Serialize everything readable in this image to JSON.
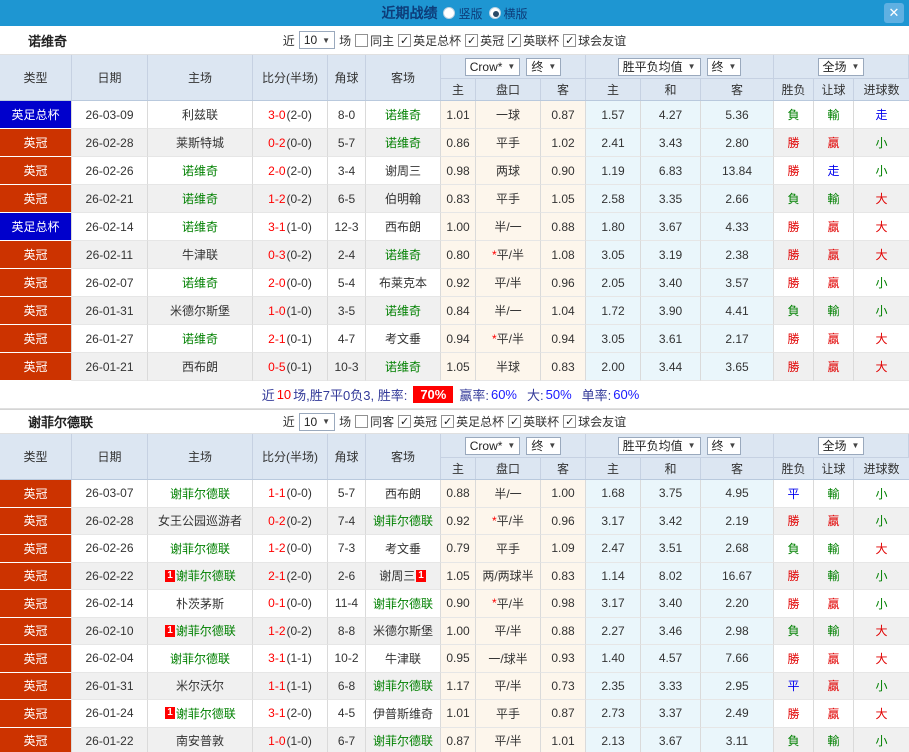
{
  "titlebar": {
    "title": "近期战绩",
    "close_glyph": "✕",
    "radios": [
      {
        "label": "竖版",
        "selected": false
      },
      {
        "label": "横版",
        "selected": true
      }
    ]
  },
  "columns": {
    "main": [
      "类型",
      "日期",
      "主场",
      "比分(半场)",
      "角球",
      "客场"
    ],
    "odds_select": "Crow*",
    "odds_final_select": "终",
    "odds_sub": [
      "主",
      "盘口",
      "客"
    ],
    "mean_select": "胜平负均值",
    "mean_final_select": "终",
    "mean_sub": [
      "主",
      "和",
      "客"
    ],
    "scope_select": "全场",
    "result_sub": [
      "胜负",
      "让球",
      "进球数"
    ],
    "arrow": "▼",
    "check_glyph": "✓"
  },
  "colors": {
    "titlebar_bg": "#1e96d2",
    "league_red": "#cc3300",
    "league_blue": "#0000cc",
    "team_green": "#008000",
    "win_red": "#e10000",
    "lose_green": "#008000",
    "draw_blue": "#0000ee",
    "rate_badge_bg": "#ff0000"
  },
  "sections": [
    {
      "team": "诺维奇",
      "filter": {
        "prefix": "近",
        "count": "10",
        "suffix": "场",
        "same_label": "同主",
        "same_checked": false,
        "leagues": [
          {
            "label": "英足总杯",
            "checked": true
          },
          {
            "label": "英冠",
            "checked": true
          },
          {
            "label": "英联杯",
            "checked": true
          },
          {
            "label": "球会友谊",
            "checked": true
          }
        ]
      },
      "rows": [
        {
          "league": "英足总杯",
          "lc": "blue",
          "date": "26-03-09",
          "home": "利兹联",
          "hg": false,
          "hcard": false,
          "ft": "3-0",
          "ht": "(2-0)",
          "corner": "8-0",
          "away": "诺维奇",
          "ag": true,
          "acard": false,
          "o_home": "1.01",
          "handicap": "一球",
          "star": false,
          "o_away": "0.87",
          "m_home": "1.57",
          "m_draw": "4.27",
          "m_away": "5.36",
          "res": [
            [
              "負",
              "g"
            ],
            [
              "輸",
              "g"
            ],
            [
              "走",
              "b"
            ]
          ]
        },
        {
          "league": "英冠",
          "lc": "red",
          "date": "26-02-28",
          "home": "莱斯特城",
          "hg": false,
          "hcard": false,
          "ft": "0-2",
          "ht": "(0-0)",
          "corner": "5-7",
          "away": "诺维奇",
          "ag": true,
          "acard": false,
          "o_home": "0.86",
          "handicap": "平手",
          "star": false,
          "o_away": "1.02",
          "m_home": "2.41",
          "m_draw": "3.43",
          "m_away": "2.80",
          "res": [
            [
              "勝",
              "r"
            ],
            [
              "贏",
              "r"
            ],
            [
              "小",
              "g"
            ]
          ]
        },
        {
          "league": "英冠",
          "lc": "red",
          "date": "26-02-26",
          "home": "诺维奇",
          "hg": true,
          "hcard": false,
          "ft": "2-0",
          "ht": "(2-0)",
          "corner": "3-4",
          "away": "谢周三",
          "ag": false,
          "acard": false,
          "o_home": "0.98",
          "handicap": "两球",
          "star": false,
          "o_away": "0.90",
          "m_home": "1.19",
          "m_draw": "6.83",
          "m_away": "13.84",
          "res": [
            [
              "勝",
              "r"
            ],
            [
              "走",
              "b"
            ],
            [
              "小",
              "g"
            ]
          ]
        },
        {
          "league": "英冠",
          "lc": "red",
          "date": "26-02-21",
          "home": "诺维奇",
          "hg": true,
          "hcard": false,
          "ft": "1-2",
          "ht": "(0-2)",
          "corner": "6-5",
          "away": "伯明翰",
          "ag": false,
          "acard": false,
          "o_home": "0.83",
          "handicap": "平手",
          "star": false,
          "o_away": "1.05",
          "m_home": "2.58",
          "m_draw": "3.35",
          "m_away": "2.66",
          "res": [
            [
              "負",
              "g"
            ],
            [
              "輸",
              "g"
            ],
            [
              "大",
              "r"
            ]
          ]
        },
        {
          "league": "英足总杯",
          "lc": "blue",
          "date": "26-02-14",
          "home": "诺维奇",
          "hg": true,
          "hcard": false,
          "ft": "3-1",
          "ht": "(1-0)",
          "corner": "12-3",
          "away": "西布朗",
          "ag": false,
          "acard": false,
          "o_home": "1.00",
          "handicap": "半/一",
          "star": false,
          "o_away": "0.88",
          "m_home": "1.80",
          "m_draw": "3.67",
          "m_away": "4.33",
          "res": [
            [
              "勝",
              "r"
            ],
            [
              "贏",
              "r"
            ],
            [
              "大",
              "r"
            ]
          ]
        },
        {
          "league": "英冠",
          "lc": "red",
          "date": "26-02-11",
          "home": "牛津联",
          "hg": false,
          "hcard": false,
          "ft": "0-3",
          "ht": "(0-2)",
          "corner": "2-4",
          "away": "诺维奇",
          "ag": true,
          "acard": false,
          "o_home": "0.80",
          "handicap": "平/半",
          "star": true,
          "o_away": "1.08",
          "m_home": "3.05",
          "m_draw": "3.19",
          "m_away": "2.38",
          "res": [
            [
              "勝",
              "r"
            ],
            [
              "贏",
              "r"
            ],
            [
              "大",
              "r"
            ]
          ]
        },
        {
          "league": "英冠",
          "lc": "red",
          "date": "26-02-07",
          "home": "诺维奇",
          "hg": true,
          "hcard": false,
          "ft": "2-0",
          "ht": "(0-0)",
          "corner": "5-4",
          "away": "布莱克本",
          "ag": false,
          "acard": false,
          "o_home": "0.92",
          "handicap": "平/半",
          "star": false,
          "o_away": "0.96",
          "m_home": "2.05",
          "m_draw": "3.40",
          "m_away": "3.57",
          "res": [
            [
              "勝",
              "r"
            ],
            [
              "贏",
              "r"
            ],
            [
              "小",
              "g"
            ]
          ]
        },
        {
          "league": "英冠",
          "lc": "red",
          "date": "26-01-31",
          "home": "米德尔斯堡",
          "hg": false,
          "hcard": false,
          "ft": "1-0",
          "ht": "(1-0)",
          "corner": "3-5",
          "away": "诺维奇",
          "ag": true,
          "acard": false,
          "o_home": "0.84",
          "handicap": "半/一",
          "star": false,
          "o_away": "1.04",
          "m_home": "1.72",
          "m_draw": "3.90",
          "m_away": "4.41",
          "res": [
            [
              "負",
              "g"
            ],
            [
              "輸",
              "g"
            ],
            [
              "小",
              "g"
            ]
          ]
        },
        {
          "league": "英冠",
          "lc": "red",
          "date": "26-01-27",
          "home": "诺维奇",
          "hg": true,
          "hcard": false,
          "ft": "2-1",
          "ht": "(0-1)",
          "corner": "4-7",
          "away": "考文垂",
          "ag": false,
          "acard": false,
          "o_home": "0.94",
          "handicap": "平/半",
          "star": true,
          "o_away": "0.94",
          "m_home": "3.05",
          "m_draw": "3.61",
          "m_away": "2.17",
          "res": [
            [
              "勝",
              "r"
            ],
            [
              "贏",
              "r"
            ],
            [
              "大",
              "r"
            ]
          ]
        },
        {
          "league": "英冠",
          "lc": "red",
          "date": "26-01-21",
          "home": "西布朗",
          "hg": false,
          "hcard": false,
          "ft": "0-5",
          "ht": "(0-1)",
          "corner": "10-3",
          "away": "诺维奇",
          "ag": true,
          "acard": false,
          "o_home": "1.05",
          "handicap": "半球",
          "star": false,
          "o_away": "0.83",
          "m_home": "2.00",
          "m_draw": "3.44",
          "m_away": "3.65",
          "res": [
            [
              "勝",
              "r"
            ],
            [
              "贏",
              "r"
            ],
            [
              "大",
              "r"
            ]
          ]
        }
      ],
      "summary": {
        "prefix": "近",
        "count": "10",
        "mid": "场,胜7平0负3, 胜率:",
        "win_rate": "70%",
        "items": [
          {
            "label": "赢率:",
            "value": "60%"
          },
          {
            "label": "大:",
            "value": "50%"
          },
          {
            "label": "单率:",
            "value": "60%"
          }
        ]
      }
    },
    {
      "team": "谢菲尔德联",
      "filter": {
        "prefix": "近",
        "count": "10",
        "suffix": "场",
        "same_label": "同客",
        "same_checked": false,
        "leagues": [
          {
            "label": "英冠",
            "checked": true
          },
          {
            "label": "英足总杯",
            "checked": true
          },
          {
            "label": "英联杯",
            "checked": true
          },
          {
            "label": "球会友谊",
            "checked": true
          }
        ]
      },
      "rows": [
        {
          "league": "英冠",
          "lc": "red",
          "date": "26-03-07",
          "home": "谢菲尔德联",
          "hg": true,
          "hcard": false,
          "ft": "1-1",
          "ht": "(0-0)",
          "corner": "5-7",
          "away": "西布朗",
          "ag": false,
          "acard": false,
          "o_home": "0.88",
          "handicap": "半/一",
          "star": false,
          "o_away": "1.00",
          "m_home": "1.68",
          "m_draw": "3.75",
          "m_away": "4.95",
          "res": [
            [
              "平",
              "b"
            ],
            [
              "輸",
              "g"
            ],
            [
              "小",
              "g"
            ]
          ]
        },
        {
          "league": "英冠",
          "lc": "red",
          "date": "26-02-28",
          "home": "女王公园巡游者",
          "hg": false,
          "hcard": false,
          "ft": "0-2",
          "ht": "(0-2)",
          "corner": "7-4",
          "away": "谢菲尔德联",
          "ag": true,
          "acard": false,
          "o_home": "0.92",
          "handicap": "平/半",
          "star": true,
          "o_away": "0.96",
          "m_home": "3.17",
          "m_draw": "3.42",
          "m_away": "2.19",
          "res": [
            [
              "勝",
              "r"
            ],
            [
              "贏",
              "r"
            ],
            [
              "小",
              "g"
            ]
          ]
        },
        {
          "league": "英冠",
          "lc": "red",
          "date": "26-02-26",
          "home": "谢菲尔德联",
          "hg": true,
          "hcard": false,
          "ft": "1-2",
          "ht": "(0-0)",
          "corner": "7-3",
          "away": "考文垂",
          "ag": false,
          "acard": false,
          "o_home": "0.79",
          "handicap": "平手",
          "star": false,
          "o_away": "1.09",
          "m_home": "2.47",
          "m_draw": "3.51",
          "m_away": "2.68",
          "res": [
            [
              "負",
              "g"
            ],
            [
              "輸",
              "g"
            ],
            [
              "大",
              "r"
            ]
          ]
        },
        {
          "league": "英冠",
          "lc": "red",
          "date": "26-02-22",
          "home": "谢菲尔德联",
          "hg": true,
          "hcard": true,
          "ft": "2-1",
          "ht": "(2-0)",
          "corner": "2-6",
          "away": "谢周三",
          "ag": false,
          "acard": true,
          "o_home": "1.05",
          "handicap": "两/两球半",
          "star": false,
          "o_away": "0.83",
          "m_home": "1.14",
          "m_draw": "8.02",
          "m_away": "16.67",
          "res": [
            [
              "勝",
              "r"
            ],
            [
              "輸",
              "g"
            ],
            [
              "小",
              "g"
            ]
          ]
        },
        {
          "league": "英冠",
          "lc": "red",
          "date": "26-02-14",
          "home": "朴茨茅斯",
          "hg": false,
          "hcard": false,
          "ft": "0-1",
          "ht": "(0-0)",
          "corner": "11-4",
          "away": "谢菲尔德联",
          "ag": true,
          "acard": false,
          "o_home": "0.90",
          "handicap": "平/半",
          "star": true,
          "o_away": "0.98",
          "m_home": "3.17",
          "m_draw": "3.40",
          "m_away": "2.20",
          "res": [
            [
              "勝",
              "r"
            ],
            [
              "贏",
              "r"
            ],
            [
              "小",
              "g"
            ]
          ]
        },
        {
          "league": "英冠",
          "lc": "red",
          "date": "26-02-10",
          "home": "谢菲尔德联",
          "hg": true,
          "hcard": true,
          "ft": "1-2",
          "ht": "(0-2)",
          "corner": "8-8",
          "away": "米德尔斯堡",
          "ag": false,
          "acard": false,
          "o_home": "1.00",
          "handicap": "平/半",
          "star": false,
          "o_away": "0.88",
          "m_home": "2.27",
          "m_draw": "3.46",
          "m_away": "2.98",
          "res": [
            [
              "負",
              "g"
            ],
            [
              "輸",
              "g"
            ],
            [
              "大",
              "r"
            ]
          ]
        },
        {
          "league": "英冠",
          "lc": "red",
          "date": "26-02-04",
          "home": "谢菲尔德联",
          "hg": true,
          "hcard": false,
          "ft": "3-1",
          "ht": "(1-1)",
          "corner": "10-2",
          "away": "牛津联",
          "ag": false,
          "acard": false,
          "o_home": "0.95",
          "handicap": "一/球半",
          "star": false,
          "o_away": "0.93",
          "m_home": "1.40",
          "m_draw": "4.57",
          "m_away": "7.66",
          "res": [
            [
              "勝",
              "r"
            ],
            [
              "贏",
              "r"
            ],
            [
              "大",
              "r"
            ]
          ]
        },
        {
          "league": "英冠",
          "lc": "red",
          "date": "26-01-31",
          "home": "米尔沃尔",
          "hg": false,
          "hcard": false,
          "ft": "1-1",
          "ht": "(1-1)",
          "corner": "6-8",
          "away": "谢菲尔德联",
          "ag": true,
          "acard": false,
          "o_home": "1.17",
          "handicap": "平/半",
          "star": false,
          "o_away": "0.73",
          "m_home": "2.35",
          "m_draw": "3.33",
          "m_away": "2.95",
          "res": [
            [
              "平",
              "b"
            ],
            [
              "贏",
              "r"
            ],
            [
              "小",
              "g"
            ]
          ]
        },
        {
          "league": "英冠",
          "lc": "red",
          "date": "26-01-24",
          "home": "谢菲尔德联",
          "hg": true,
          "hcard": true,
          "ft": "3-1",
          "ht": "(2-0)",
          "corner": "4-5",
          "away": "伊普斯维奇",
          "ag": false,
          "acard": false,
          "o_home": "1.01",
          "handicap": "平手",
          "star": false,
          "o_away": "0.87",
          "m_home": "2.73",
          "m_draw": "3.37",
          "m_away": "2.49",
          "res": [
            [
              "勝",
              "r"
            ],
            [
              "贏",
              "r"
            ],
            [
              "大",
              "r"
            ]
          ]
        },
        {
          "league": "英冠",
          "lc": "red",
          "date": "26-01-22",
          "home": "南安普敦",
          "hg": false,
          "hcard": false,
          "ft": "1-0",
          "ht": "(1-0)",
          "corner": "6-7",
          "away": "谢菲尔德联",
          "ag": true,
          "acard": false,
          "o_home": "0.87",
          "handicap": "平/半",
          "star": false,
          "o_away": "1.01",
          "m_home": "2.13",
          "m_draw": "3.67",
          "m_away": "3.11",
          "res": [
            [
              "負",
              "g"
            ],
            [
              "輸",
              "g"
            ],
            [
              "小",
              "g"
            ]
          ]
        }
      ],
      "summary": null
    }
  ]
}
